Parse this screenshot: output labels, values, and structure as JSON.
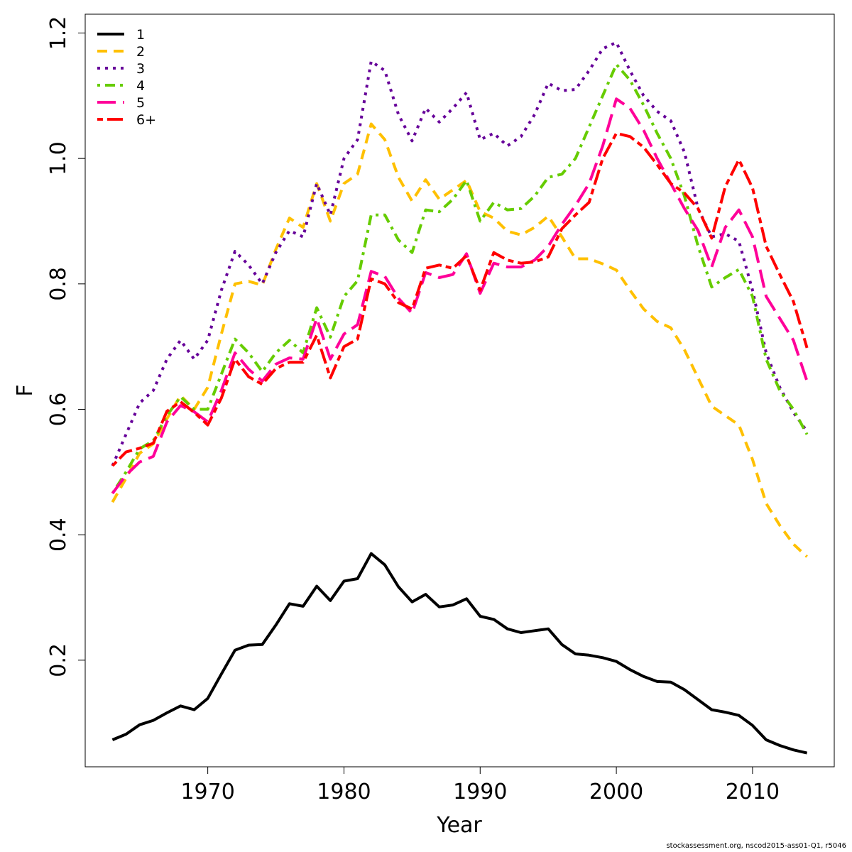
{
  "chart_data": {
    "type": "line",
    "xlabel": "Year",
    "ylabel": "F",
    "xlim": [
      1961,
      2016
    ],
    "ylim": [
      0.03,
      1.23
    ],
    "xticks": [
      1970,
      1980,
      1990,
      2000,
      2010
    ],
    "yticks": [
      0.2,
      0.4,
      0.6,
      0.8,
      1.0,
      1.2
    ],
    "ytick_labels": [
      "0.2",
      "0.4",
      "0.6",
      "0.8",
      "1.0",
      "1.2"
    ],
    "grid": false,
    "legend_position": "top-left",
    "x": [
      1963,
      1964,
      1965,
      1966,
      1967,
      1968,
      1969,
      1970,
      1971,
      1972,
      1973,
      1974,
      1975,
      1976,
      1977,
      1978,
      1979,
      1980,
      1981,
      1982,
      1983,
      1984,
      1985,
      1986,
      1987,
      1988,
      1989,
      1990,
      1991,
      1992,
      1993,
      1994,
      1995,
      1996,
      1997,
      1998,
      1999,
      2000,
      2001,
      2002,
      2003,
      2004,
      2005,
      2006,
      2007,
      2008,
      2009,
      2010,
      2011,
      2012,
      2013,
      2014
    ],
    "series": [
      {
        "name": "1",
        "color": "#000000",
        "dash": "solid",
        "values": [
          0.073,
          0.082,
          0.097,
          0.104,
          0.116,
          0.127,
          0.121,
          0.139,
          0.178,
          0.216,
          0.224,
          0.225,
          0.256,
          0.29,
          0.286,
          0.318,
          0.295,
          0.326,
          0.33,
          0.37,
          0.352,
          0.317,
          0.293,
          0.305,
          0.285,
          0.288,
          0.298,
          0.27,
          0.265,
          0.25,
          0.244,
          0.247,
          0.25,
          0.225,
          0.21,
          0.208,
          0.204,
          0.198,
          0.185,
          0.174,
          0.166,
          0.165,
          0.153,
          0.137,
          0.121,
          0.117,
          0.112,
          0.096,
          0.073,
          0.064,
          0.057,
          0.052
        ]
      },
      {
        "name": "2",
        "color": "#ffc000",
        "dash": "dashed",
        "values": [
          0.452,
          0.49,
          0.53,
          0.545,
          0.585,
          0.622,
          0.6,
          0.635,
          0.72,
          0.8,
          0.804,
          0.798,
          0.855,
          0.905,
          0.89,
          0.96,
          0.9,
          0.96,
          0.975,
          1.055,
          1.03,
          0.97,
          0.932,
          0.966,
          0.935,
          0.95,
          0.965,
          0.915,
          0.905,
          0.884,
          0.878,
          0.89,
          0.908,
          0.875,
          0.84,
          0.84,
          0.832,
          0.822,
          0.79,
          0.76,
          0.74,
          0.73,
          0.695,
          0.65,
          0.605,
          0.59,
          0.575,
          0.52,
          0.45,
          0.415,
          0.385,
          0.365
        ]
      },
      {
        "name": "3",
        "color": "#660099",
        "dash": "dotted",
        "values": [
          0.51,
          0.56,
          0.61,
          0.63,
          0.68,
          0.71,
          0.68,
          0.71,
          0.79,
          0.852,
          0.83,
          0.8,
          0.85,
          0.885,
          0.875,
          0.96,
          0.91,
          1.0,
          1.03,
          1.155,
          1.14,
          1.07,
          1.028,
          1.08,
          1.058,
          1.08,
          1.105,
          1.03,
          1.04,
          1.02,
          1.035,
          1.07,
          1.12,
          1.108,
          1.11,
          1.14,
          1.175,
          1.185,
          1.14,
          1.1,
          1.075,
          1.06,
          1.01,
          0.92,
          0.875,
          0.88,
          0.868,
          0.79,
          0.69,
          0.635,
          0.595,
          0.565
        ]
      },
      {
        "name": "4",
        "color": "#66cc00",
        "dash": "dotdash",
        "values": [
          0.466,
          0.5,
          0.537,
          0.55,
          0.59,
          0.62,
          0.6,
          0.6,
          0.656,
          0.712,
          0.69,
          0.66,
          0.69,
          0.71,
          0.69,
          0.762,
          0.715,
          0.78,
          0.805,
          0.91,
          0.91,
          0.87,
          0.85,
          0.918,
          0.915,
          0.935,
          0.965,
          0.9,
          0.93,
          0.918,
          0.92,
          0.94,
          0.97,
          0.975,
          1.0,
          1.05,
          1.1,
          1.15,
          1.125,
          1.085,
          1.04,
          1.0,
          0.94,
          0.86,
          0.795,
          0.81,
          0.823,
          0.78,
          0.68,
          0.63,
          0.6,
          0.56
        ]
      },
      {
        "name": "5",
        "color": "#ff0099",
        "dash": "longdash",
        "values": [
          0.466,
          0.495,
          0.516,
          0.525,
          0.58,
          0.606,
          0.596,
          0.58,
          0.63,
          0.69,
          0.664,
          0.645,
          0.672,
          0.682,
          0.68,
          0.745,
          0.68,
          0.72,
          0.735,
          0.82,
          0.812,
          0.777,
          0.753,
          0.818,
          0.81,
          0.815,
          0.848,
          0.785,
          0.833,
          0.827,
          0.827,
          0.838,
          0.86,
          0.895,
          0.925,
          0.96,
          1.02,
          1.095,
          1.08,
          1.045,
          1.0,
          0.96,
          0.92,
          0.885,
          0.827,
          0.89,
          0.918,
          0.875,
          0.78,
          0.745,
          0.71,
          0.645
        ]
      },
      {
        "name": "6+",
        "color": "#ff0000",
        "dash": "twodash",
        "values": [
          0.51,
          0.532,
          0.538,
          0.546,
          0.597,
          0.612,
          0.595,
          0.575,
          0.618,
          0.68,
          0.652,
          0.64,
          0.665,
          0.675,
          0.675,
          0.718,
          0.65,
          0.7,
          0.712,
          0.808,
          0.8,
          0.77,
          0.76,
          0.825,
          0.83,
          0.825,
          0.845,
          0.79,
          0.85,
          0.838,
          0.833,
          0.835,
          0.843,
          0.888,
          0.91,
          0.93,
          1.0,
          1.04,
          1.035,
          1.018,
          0.99,
          0.96,
          0.945,
          0.92,
          0.873,
          0.955,
          0.998,
          0.953,
          0.86,
          0.815,
          0.772,
          0.698
        ]
      }
    ]
  },
  "footer": "stockassessment.org, nscod2015-ass01-Q1, r5046"
}
